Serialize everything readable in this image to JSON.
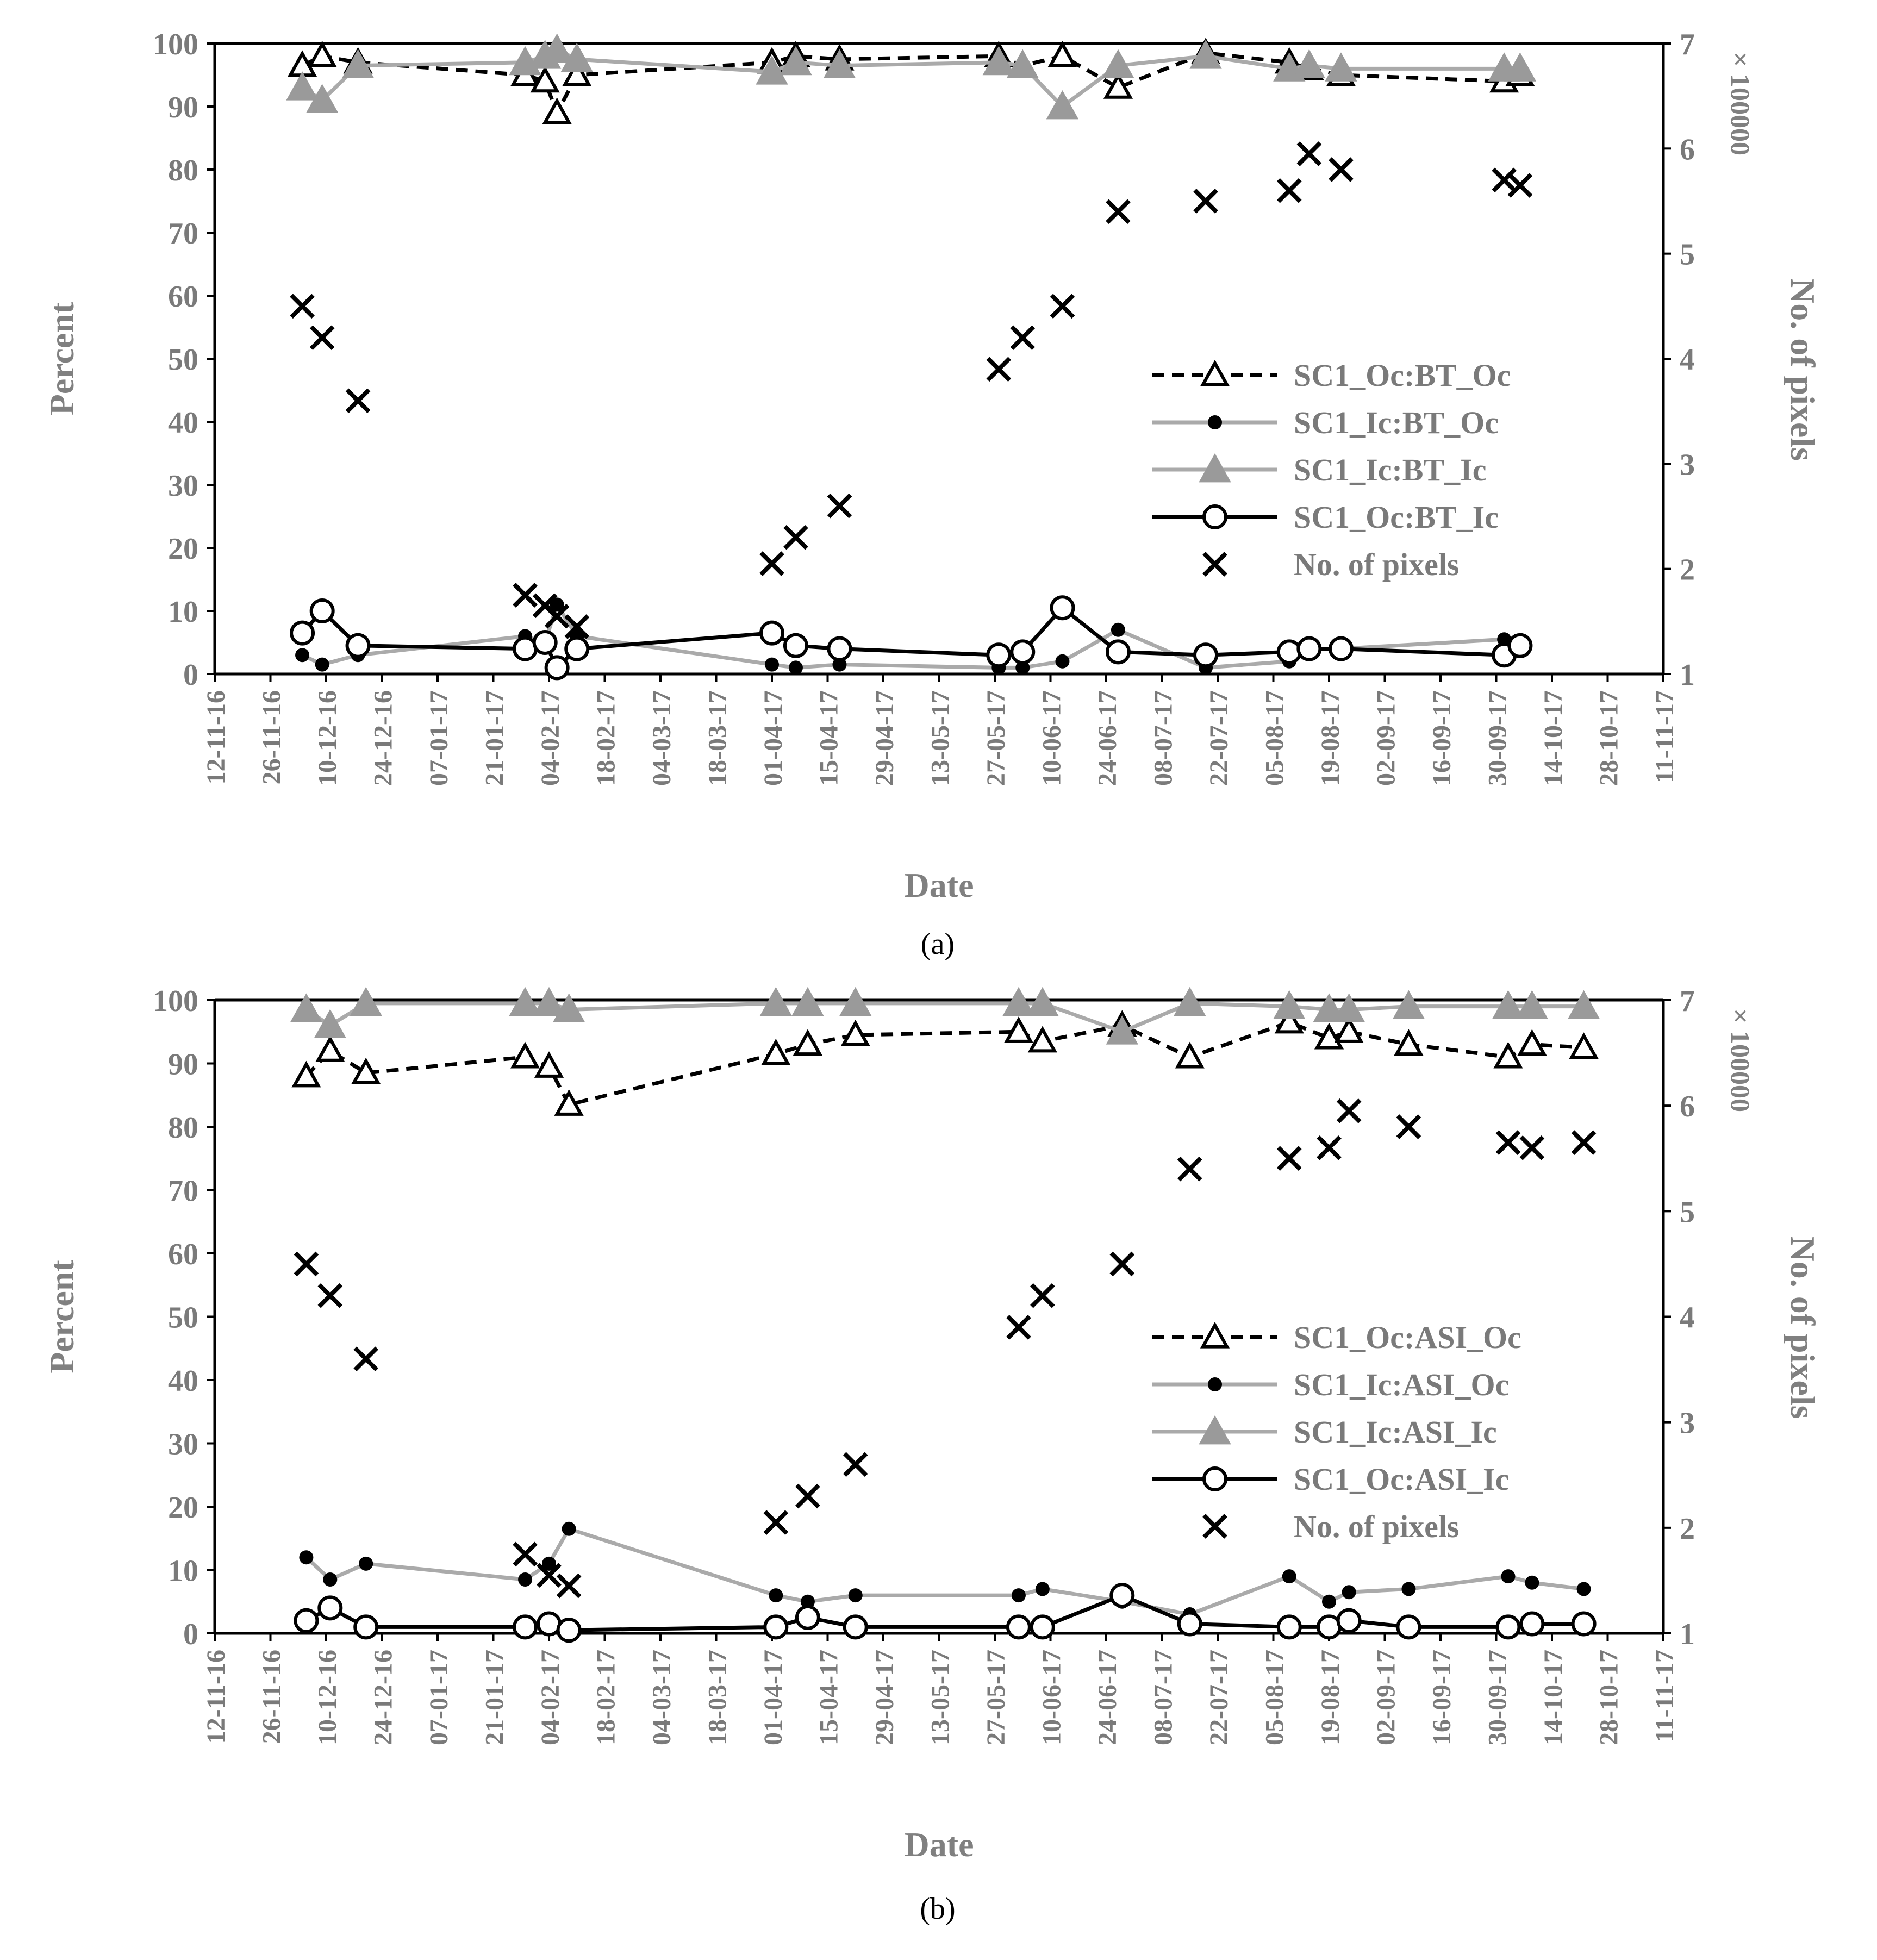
{
  "figure": {
    "caption_a": "(a)",
    "caption_b": "(b)"
  },
  "chart_data": [
    {
      "panel": "a",
      "type": "line",
      "xlabel": "Date",
      "ylabel": "Percent",
      "y2label": "No. of pixels",
      "y2multiplier": "× 100000",
      "xticks": [
        "12-11-16",
        "26-11-16",
        "10-12-16",
        "24-12-16",
        "07-01-17",
        "21-01-17",
        "04-02-17",
        "18-02-17",
        "04-03-17",
        "18-03-17",
        "01-04-17",
        "15-04-17",
        "29-04-17",
        "13-05-17",
        "27-05-17",
        "10-06-17",
        "24-06-17",
        "08-07-17",
        "22-07-17",
        "05-08-17",
        "19-08-17",
        "02-09-17",
        "16-09-17",
        "30-09-17",
        "14-10-17",
        "28-10-17",
        "11-11-17"
      ],
      "yticks": [
        "0",
        "10",
        "20",
        "30",
        "40",
        "50",
        "60",
        "70",
        "80",
        "90",
        "100"
      ],
      "y2ticks": [
        "1",
        "2",
        "3",
        "4",
        "5",
        "6",
        "7"
      ],
      "xlim": [
        0,
        364
      ],
      "ylim": [
        0,
        100
      ],
      "y2lim": [
        1,
        7
      ],
      "legend_position": "right",
      "series": [
        {
          "name": "SC1_Oc:BT_Oc",
          "axis": "left",
          "x": [
            22,
            27,
            36,
            78,
            83,
            86,
            91,
            140,
            146,
            157,
            197,
            203,
            213,
            227,
            249,
            270,
            275,
            283,
            324,
            328
          ],
          "y": [
            96.5,
            98,
            97,
            95,
            94,
            89,
            95,
            97,
            98,
            97.5,
            98,
            96.5,
            98,
            93,
            98.5,
            97,
            96,
            95,
            94,
            95
          ]
        },
        {
          "name": "SC1_Ic:BT_Oc",
          "axis": "left",
          "x": [
            22,
            27,
            36,
            78,
            83,
            86,
            91,
            140,
            146,
            157,
            197,
            203,
            213,
            227,
            249,
            270,
            275,
            283,
            324,
            328
          ],
          "y": [
            3,
            1.5,
            3,
            6,
            5,
            11,
            6,
            1.5,
            1,
            1.5,
            1,
            1,
            2,
            7,
            1,
            2,
            4,
            4,
            5.5,
            4
          ]
        },
        {
          "name": "SC1_Ic:BT_Ic",
          "axis": "left",
          "x": [
            22,
            27,
            36,
            78,
            83,
            86,
            91,
            140,
            146,
            157,
            197,
            203,
            213,
            227,
            249,
            270,
            275,
            283,
            324,
            328
          ],
          "y": [
            93,
            91,
            96.5,
            97,
            98,
            99,
            97.5,
            95.5,
            97,
            96.5,
            97,
            96.5,
            90,
            96.5,
            98,
            96,
            96.5,
            96,
            96,
            96
          ]
        },
        {
          "name": "SC1_Oc:BT_Ic",
          "axis": "left",
          "x": [
            22,
            27,
            36,
            78,
            83,
            86,
            91,
            140,
            146,
            157,
            197,
            203,
            213,
            227,
            249,
            270,
            275,
            283,
            324,
            328
          ],
          "y": [
            6.5,
            10,
            4.5,
            4,
            5,
            1,
            4,
            6.5,
            4.5,
            4,
            3,
            3.5,
            10.5,
            3.5,
            3,
            3.5,
            4,
            4,
            3,
            4.5
          ]
        },
        {
          "name": "No. of pixels",
          "axis": "right",
          "x": [
            22,
            27,
            36,
            78,
            83,
            86,
            91,
            140,
            146,
            157,
            197,
            203,
            213,
            227,
            249,
            270,
            275,
            283,
            324,
            328
          ],
          "y": [
            4.5,
            4.2,
            3.6,
            1.75,
            1.65,
            1.55,
            1.45,
            2.05,
            2.3,
            2.6,
            3.9,
            4.2,
            4.5,
            5.4,
            5.5,
            5.6,
            5.95,
            5.8,
            5.7,
            5.65
          ]
        }
      ]
    },
    {
      "panel": "b",
      "type": "line",
      "xlabel": "Date",
      "ylabel": "Percent",
      "y2label": "No. of pixels",
      "y2multiplier": "× 100000",
      "xticks": [
        "12-11-16",
        "26-11-16",
        "10-12-16",
        "24-12-16",
        "07-01-17",
        "21-01-17",
        "04-02-17",
        "18-02-17",
        "04-03-17",
        "18-03-17",
        "01-04-17",
        "15-04-17",
        "29-04-17",
        "13-05-17",
        "27-05-17",
        "10-06-17",
        "24-06-17",
        "08-07-17",
        "22-07-17",
        "05-08-17",
        "19-08-17",
        "02-09-17",
        "16-09-17",
        "30-09-17",
        "14-10-17",
        "28-10-17",
        "11-11-17"
      ],
      "yticks": [
        "0",
        "10",
        "20",
        "30",
        "40",
        "50",
        "60",
        "70",
        "80",
        "90",
        "100"
      ],
      "y2ticks": [
        "1",
        "2",
        "3",
        "4",
        "5",
        "6",
        "7"
      ],
      "xlim": [
        0,
        364
      ],
      "ylim": [
        0,
        100
      ],
      "y2lim": [
        1,
        7
      ],
      "legend_position": "right",
      "series": [
        {
          "name": "SC1_Oc:ASI_Oc",
          "axis": "left",
          "x": [
            23,
            29,
            38,
            78,
            84,
            89,
            141,
            149,
            161,
            202,
            208,
            228,
            245,
            270,
            280,
            285,
            300,
            325,
            331,
            344
          ],
          "y": [
            88,
            92,
            88.5,
            91,
            89.5,
            83.5,
            91.5,
            93,
            94.5,
            95,
            93.5,
            96,
            91,
            96.5,
            94,
            95,
            93,
            91,
            93,
            92.5
          ]
        },
        {
          "name": "SC1_Ic:ASI_Oc",
          "axis": "left",
          "x": [
            23,
            29,
            38,
            78,
            84,
            89,
            141,
            149,
            161,
            202,
            208,
            228,
            245,
            270,
            280,
            285,
            300,
            325,
            331,
            344
          ],
          "y": [
            12,
            8.5,
            11,
            8.5,
            11,
            16.5,
            6,
            5,
            6,
            6,
            7,
            5,
            3,
            9,
            5,
            6.5,
            7,
            9,
            8,
            7
          ]
        },
        {
          "name": "SC1_Ic:ASI_Ic",
          "axis": "left",
          "x": [
            23,
            29,
            38,
            78,
            84,
            89,
            141,
            149,
            161,
            202,
            208,
            228,
            245,
            270,
            280,
            285,
            300,
            325,
            331,
            344
          ],
          "y": [
            98.5,
            96,
            99.5,
            99.5,
            99.5,
            98.5,
            99.5,
            99.5,
            99.5,
            99.5,
            99.5,
            95,
            99.5,
            99,
            98.5,
            98.5,
            99,
            99,
            99,
            99
          ]
        },
        {
          "name": "SC1_Oc:ASI_Ic",
          "axis": "left",
          "x": [
            23,
            29,
            38,
            78,
            84,
            89,
            141,
            149,
            161,
            202,
            208,
            228,
            245,
            270,
            280,
            285,
            300,
            325,
            331,
            344
          ],
          "y": [
            2,
            4,
            1,
            1,
            1.5,
            0.5,
            1,
            2.5,
            1,
            1,
            1,
            6,
            1.5,
            1,
            1,
            2,
            1,
            1,
            1.5,
            1.5
          ]
        },
        {
          "name": "No. of pixels",
          "axis": "right",
          "x": [
            23,
            29,
            38,
            78,
            84,
            89,
            141,
            149,
            161,
            202,
            208,
            228,
            245,
            270,
            280,
            285,
            300,
            325,
            331,
            344
          ],
          "y": [
            4.5,
            4.2,
            3.6,
            1.75,
            1.55,
            1.45,
            2.05,
            2.3,
            2.6,
            3.9,
            4.2,
            4.5,
            5.4,
            5.5,
            5.6,
            5.95,
            5.8,
            5.65,
            5.6,
            5.65
          ]
        }
      ]
    }
  ]
}
